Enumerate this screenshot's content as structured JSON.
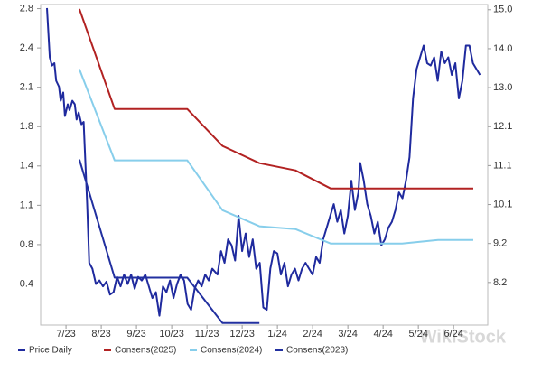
{
  "chart_data": {
    "type": "line",
    "watermark": "WikiStock",
    "xlim": [
      -0.72,
      11.97
    ],
    "xticks": [
      {
        "value": 0,
        "label": "7/23"
      },
      {
        "value": 1,
        "label": "8/23"
      },
      {
        "value": 2,
        "label": "9/23"
      },
      {
        "value": 3,
        "label": "10/23"
      },
      {
        "value": 4,
        "label": "11/23"
      },
      {
        "value": 5,
        "label": "12/23"
      },
      {
        "value": 6,
        "label": "1/24"
      },
      {
        "value": 7,
        "label": "2/24"
      },
      {
        "value": 8,
        "label": "3/24"
      },
      {
        "value": 9,
        "label": "4/24"
      },
      {
        "value": 10,
        "label": "5/24"
      },
      {
        "value": 11,
        "label": "6/24"
      }
    ],
    "ylim": [
      0.07,
      2.8
    ],
    "yticks": [
      {
        "value": 0.42,
        "label": "0.4"
      },
      {
        "value": 0.755,
        "label": "0.8"
      },
      {
        "value": 1.09,
        "label": "1.1"
      },
      {
        "value": 1.425,
        "label": "1.4"
      },
      {
        "value": 1.76,
        "label": "1.8"
      },
      {
        "value": 2.095,
        "label": "2.1"
      },
      {
        "value": 2.43,
        "label": "2.4"
      },
      {
        "value": 2.765,
        "label": "2.8"
      }
    ],
    "y2lim": [
      7.13,
      15.11
    ],
    "y2ticks": [
      {
        "value": 8.19,
        "label": "8.2"
      },
      {
        "value": 9.16,
        "label": "9.2"
      },
      {
        "value": 10.13,
        "label": "10.1"
      },
      {
        "value": 11.1,
        "label": "11.1"
      },
      {
        "value": 12.07,
        "label": "12.1"
      },
      {
        "value": 13.04,
        "label": "13.0"
      },
      {
        "value": 14.01,
        "label": "14.0"
      },
      {
        "value": 14.98,
        "label": "15.0"
      }
    ],
    "series": [
      {
        "name": "Price Daily",
        "color": "#1f2a9e",
        "x": [
          -0.54,
          -0.46,
          -0.4,
          -0.33,
          -0.28,
          -0.2,
          -0.15,
          -0.08,
          -0.03,
          0.05,
          0.1,
          0.18,
          0.25,
          0.3,
          0.36,
          0.44,
          0.5,
          0.6,
          0.66,
          0.75,
          0.85,
          0.95,
          1.05,
          1.15,
          1.25,
          1.35,
          1.45,
          1.55,
          1.65,
          1.75,
          1.85,
          1.95,
          2.05,
          2.15,
          2.25,
          2.35,
          2.45,
          2.55,
          2.65,
          2.75,
          2.85,
          2.95,
          3.05,
          3.15,
          3.25,
          3.35,
          3.45,
          3.55,
          3.65,
          3.75,
          3.85,
          3.95,
          4.05,
          4.15,
          4.3,
          4.4,
          4.5,
          4.6,
          4.7,
          4.8,
          4.9,
          5.0,
          5.1,
          5.2,
          5.3,
          5.4,
          5.5,
          5.6,
          5.7,
          5.8,
          5.9,
          6.0,
          6.1,
          6.2,
          6.3,
          6.4,
          6.5,
          6.6,
          6.7,
          6.8,
          6.9,
          7.0,
          7.1,
          7.2,
          7.3,
          7.4,
          7.5,
          7.6,
          7.7,
          7.8,
          7.9,
          8.0,
          8.1,
          8.2,
          8.3,
          8.35,
          8.45,
          8.55,
          8.65,
          8.75,
          8.85,
          8.95,
          9.05,
          9.15,
          9.25,
          9.35,
          9.45,
          9.55,
          9.65,
          9.75,
          9.85,
          9.95,
          10.05,
          10.15,
          10.25,
          10.35,
          10.45,
          10.55,
          10.65,
          10.75,
          10.85,
          10.95,
          11.05,
          11.15,
          11.25,
          11.35,
          11.45,
          11.55,
          11.65,
          11.75
        ],
        "values": [
          2.77,
          2.35,
          2.28,
          2.3,
          2.15,
          2.1,
          1.98,
          2.05,
          1.85,
          1.95,
          1.9,
          1.98,
          1.95,
          1.82,
          1.88,
          1.78,
          1.8,
          1.1,
          0.6,
          0.55,
          0.42,
          0.45,
          0.4,
          0.44,
          0.33,
          0.35,
          0.48,
          0.4,
          0.5,
          0.42,
          0.5,
          0.38,
          0.48,
          0.45,
          0.5,
          0.4,
          0.3,
          0.35,
          0.15,
          0.4,
          0.35,
          0.45,
          0.3,
          0.42,
          0.5,
          0.45,
          0.25,
          0.2,
          0.38,
          0.45,
          0.4,
          0.5,
          0.45,
          0.55,
          0.5,
          0.7,
          0.6,
          0.8,
          0.75,
          0.62,
          1.0,
          0.7,
          0.85,
          0.65,
          0.8,
          0.55,
          0.6,
          0.22,
          0.2,
          0.55,
          0.7,
          0.68,
          0.5,
          0.6,
          0.4,
          0.5,
          0.55,
          0.45,
          0.55,
          0.6,
          0.55,
          0.5,
          0.65,
          0.6,
          0.8,
          0.9,
          1.0,
          1.1,
          0.95,
          1.05,
          0.85,
          1.0,
          1.3,
          1.05,
          1.2,
          1.45,
          1.3,
          1.1,
          1.0,
          0.85,
          0.95,
          0.75,
          0.8,
          0.9,
          0.95,
          1.05,
          1.2,
          1.15,
          1.3,
          1.5,
          2.0,
          2.25,
          2.35,
          2.45,
          2.3,
          2.28,
          2.35,
          2.15,
          2.4,
          2.3,
          2.35,
          2.2,
          2.3,
          2.0,
          2.15,
          2.45,
          2.45,
          2.3,
          2.25,
          2.2
        ]
      },
      {
        "name": "Consens(2025)",
        "color": "#b22222",
        "axis": "y2",
        "x": [
          0.38,
          1.38,
          3.44,
          4.44,
          5.49,
          6.51,
          7.51,
          11.56
        ],
        "values": [
          15.0,
          12.51,
          12.51,
          11.59,
          11.16,
          10.98,
          10.53,
          10.53
        ]
      },
      {
        "name": "Consens(2024)",
        "color": "#87ceeb",
        "axis": "y2",
        "x": [
          0.38,
          1.38,
          3.44,
          4.44,
          5.49,
          6.51,
          7.51,
          9.54,
          10.56,
          11.56
        ],
        "values": [
          13.5,
          11.23,
          11.23,
          9.99,
          9.59,
          9.52,
          9.16,
          9.16,
          9.25,
          9.25
        ]
      },
      {
        "name": "Consens(2023)",
        "color": "#2230a0",
        "axis": "y2",
        "x": [
          0.38,
          1.38,
          3.44,
          4.44,
          5.49
        ],
        "values": [
          11.25,
          8.31,
          8.31,
          7.18,
          7.18
        ]
      }
    ]
  }
}
